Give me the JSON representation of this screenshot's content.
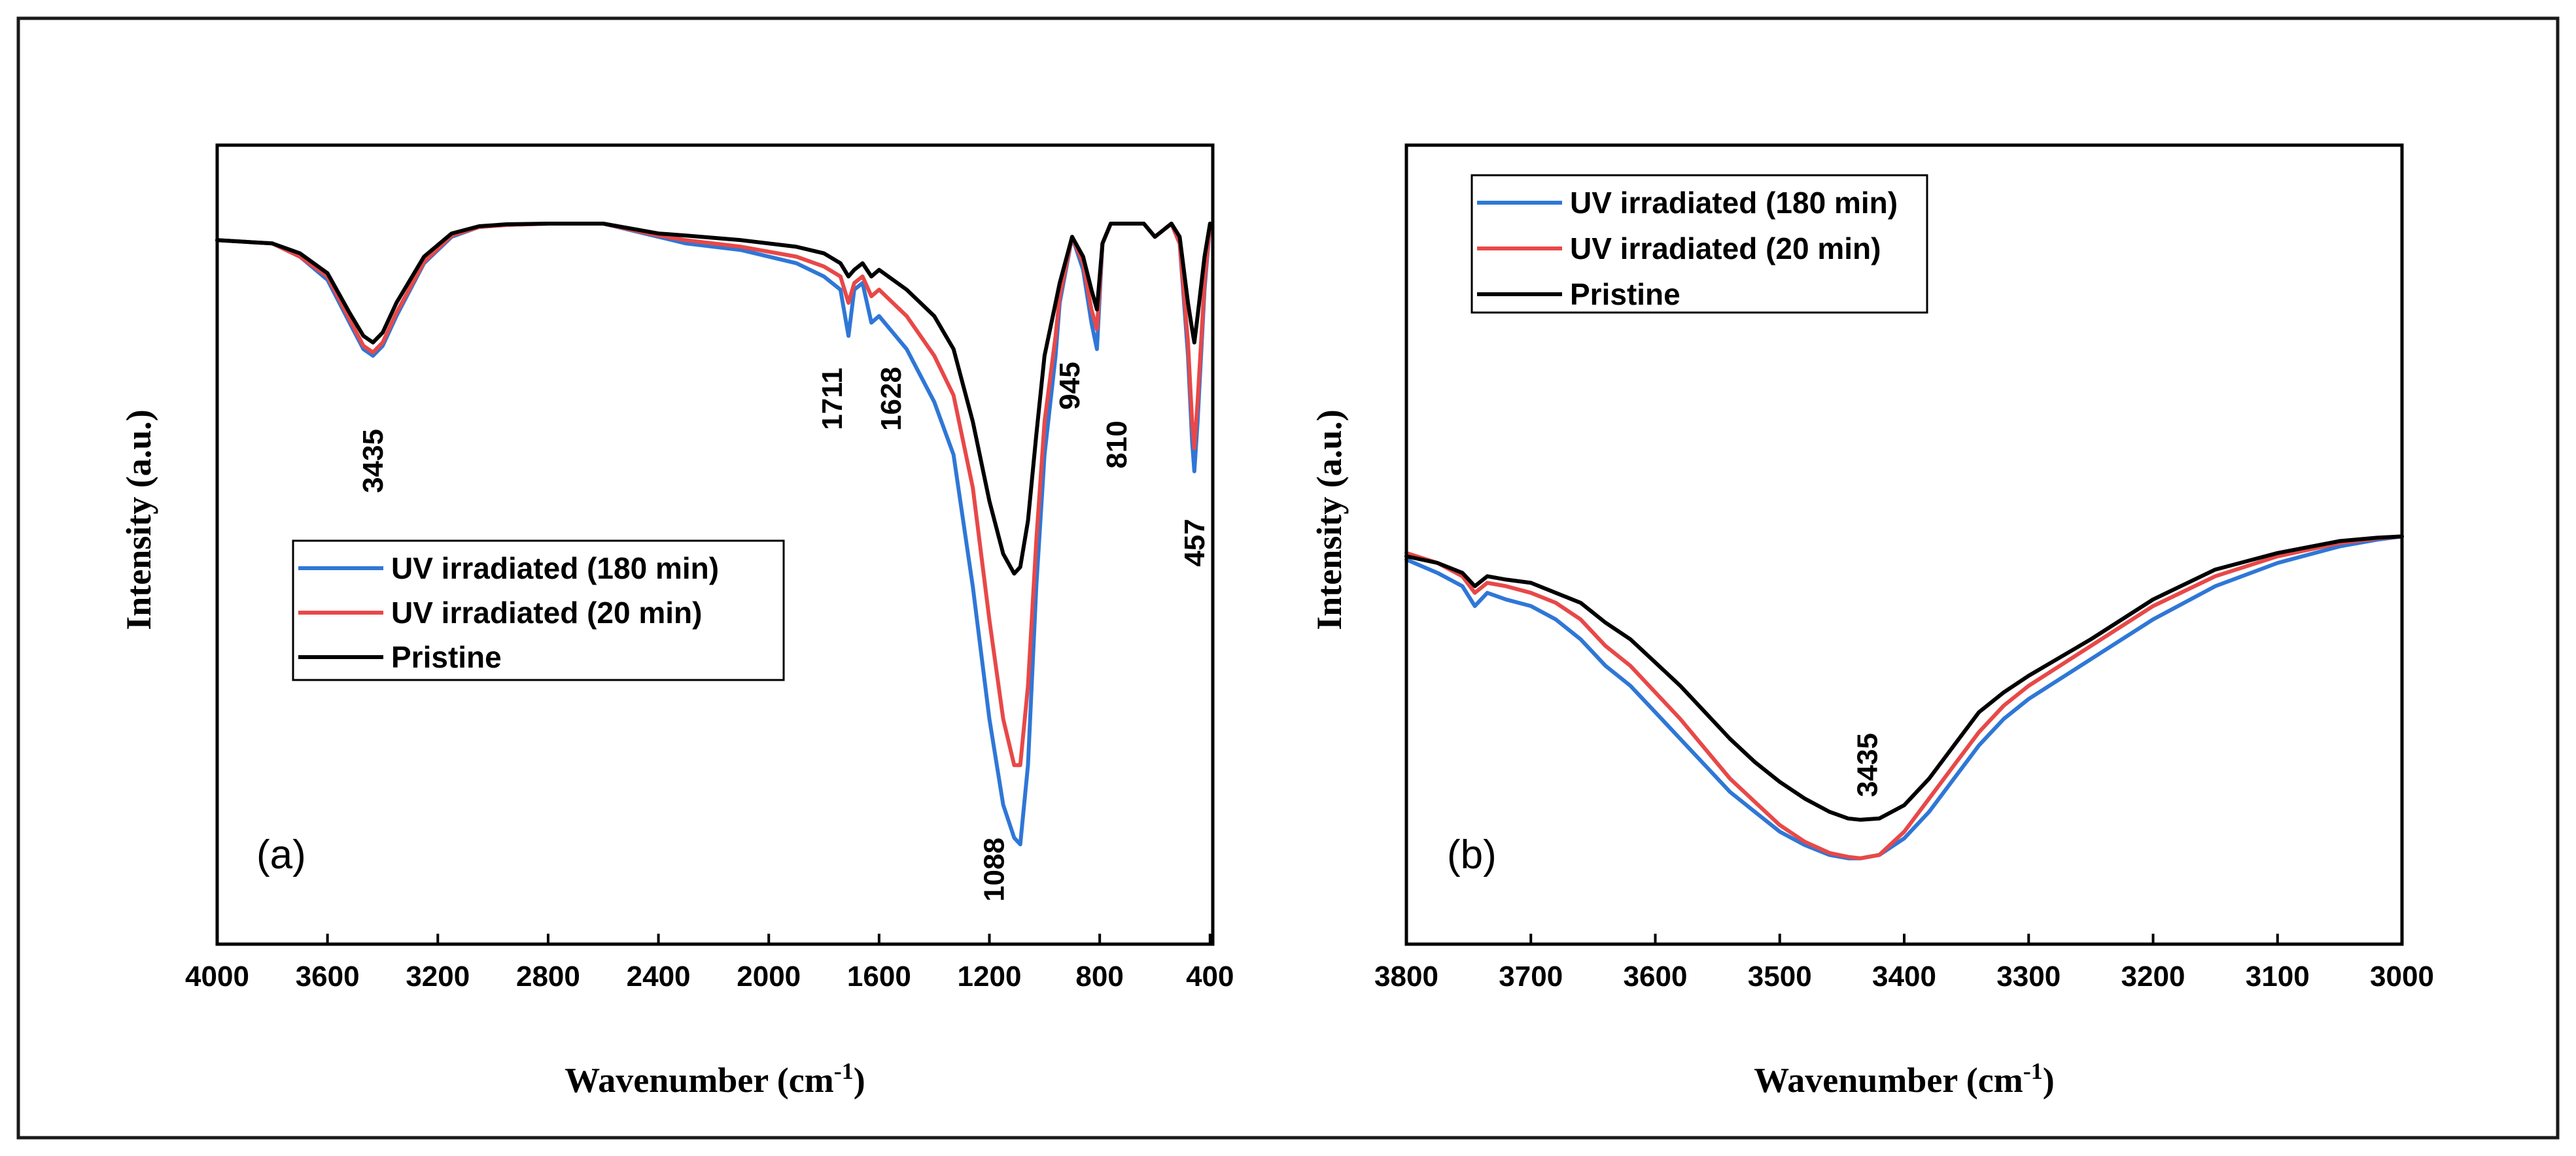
{
  "chart_data": [
    {
      "type": "line",
      "panel_label": "(a)",
      "xlabel": "Wavenumber (cm",
      "xlabel_sup": "-1",
      "xlabel_close": ")",
      "ylabel": "Intensity (a.u.)",
      "xlim": [
        4000,
        390
      ],
      "ylim": [
        0,
        1
      ],
      "xticks": [
        4000,
        3600,
        3200,
        2800,
        2400,
        2000,
        1600,
        1200,
        800,
        400
      ],
      "xtick_labels": [
        "4000",
        "3600",
        "3200",
        "2800",
        "2400",
        "2000",
        "1600",
        "1200",
        "800",
        "400"
      ],
      "legend": {
        "position": "center-left",
        "entries": [
          {
            "label": "UV irradiated (180 min)",
            "color": "#2f77d6"
          },
          {
            "label": "UV irradiated (20 min)",
            "color": "#e84848"
          },
          {
            "label": "Pristine",
            "color": "#000000"
          }
        ]
      },
      "annotations": [
        {
          "text": "3435",
          "x": 3435
        },
        {
          "text": "1711",
          "x": 1711
        },
        {
          "text": "1628",
          "x": 1628
        },
        {
          "text": "1088",
          "x": 1088
        },
        {
          "text": "945",
          "x": 945
        },
        {
          "text": "810",
          "x": 810
        },
        {
          "text": "457",
          "x": 457
        }
      ],
      "series": [
        {
          "name": "UV irradiated (180 min)",
          "color": "#2f77d6",
          "x": [
            4000,
            3800,
            3700,
            3600,
            3520,
            3470,
            3435,
            3400,
            3350,
            3250,
            3150,
            3050,
            2950,
            2800,
            2600,
            2400,
            2300,
            2100,
            1900,
            1800,
            1740,
            1711,
            1690,
            1660,
            1628,
            1600,
            1500,
            1400,
            1330,
            1260,
            1200,
            1150,
            1110,
            1088,
            1060,
            1030,
            1000,
            960,
            945,
            900,
            860,
            830,
            810,
            790,
            760,
            700,
            640,
            600,
            540,
            510,
            480,
            465,
            457,
            445,
            420,
            400
          ],
          "y": [
            0.025,
            0.03,
            0.05,
            0.085,
            0.15,
            0.19,
            0.2,
            0.185,
            0.14,
            0.06,
            0.02,
            0.005,
            0.002,
            0.0,
            0.0,
            0.02,
            0.03,
            0.04,
            0.06,
            0.08,
            0.1,
            0.17,
            0.1,
            0.09,
            0.15,
            0.14,
            0.19,
            0.27,
            0.35,
            0.55,
            0.75,
            0.88,
            0.93,
            0.94,
            0.82,
            0.55,
            0.35,
            0.2,
            0.12,
            0.02,
            0.07,
            0.15,
            0.19,
            0.03,
            0.0,
            0.0,
            0.0,
            0.02,
            0.0,
            0.03,
            0.2,
            0.33,
            0.375,
            0.3,
            0.1,
            0.0
          ]
        },
        {
          "name": "UV irradiated (20 min)",
          "color": "#e84848",
          "x": [
            4000,
            3800,
            3700,
            3600,
            3520,
            3470,
            3435,
            3400,
            3350,
            3250,
            3150,
            3050,
            2950,
            2800,
            2600,
            2400,
            2300,
            2100,
            1900,
            1800,
            1740,
            1711,
            1690,
            1660,
            1628,
            1600,
            1500,
            1400,
            1330,
            1260,
            1200,
            1150,
            1110,
            1088,
            1060,
            1030,
            1000,
            960,
            945,
            900,
            860,
            830,
            810,
            790,
            760,
            700,
            640,
            600,
            540,
            510,
            480,
            465,
            457,
            445,
            420,
            400
          ],
          "y": [
            0.025,
            0.03,
            0.05,
            0.08,
            0.145,
            0.185,
            0.195,
            0.18,
            0.135,
            0.058,
            0.018,
            0.005,
            0.002,
            0.0,
            0.0,
            0.018,
            0.025,
            0.035,
            0.05,
            0.065,
            0.08,
            0.12,
            0.09,
            0.08,
            0.11,
            0.1,
            0.14,
            0.2,
            0.26,
            0.4,
            0.6,
            0.75,
            0.82,
            0.82,
            0.7,
            0.48,
            0.3,
            0.17,
            0.11,
            0.02,
            0.06,
            0.13,
            0.16,
            0.03,
            0.0,
            0.0,
            0.0,
            0.02,
            0.0,
            0.03,
            0.18,
            0.3,
            0.34,
            0.27,
            0.09,
            0.0
          ]
        },
        {
          "name": "Pristine",
          "color": "#000000",
          "x": [
            4000,
            3800,
            3700,
            3600,
            3520,
            3470,
            3435,
            3400,
            3350,
            3250,
            3150,
            3050,
            2950,
            2800,
            2600,
            2400,
            2300,
            2100,
            1900,
            1800,
            1740,
            1711,
            1690,
            1660,
            1628,
            1600,
            1500,
            1400,
            1330,
            1260,
            1200,
            1150,
            1110,
            1088,
            1060,
            1030,
            1000,
            960,
            945,
            900,
            860,
            830,
            810,
            790,
            760,
            700,
            640,
            600,
            540,
            510,
            480,
            465,
            457,
            445,
            420,
            400
          ],
          "y": [
            0.025,
            0.03,
            0.045,
            0.075,
            0.135,
            0.17,
            0.18,
            0.165,
            0.12,
            0.05,
            0.015,
            0.004,
            0.001,
            0.0,
            0.0,
            0.015,
            0.018,
            0.025,
            0.035,
            0.045,
            0.06,
            0.08,
            0.07,
            0.06,
            0.08,
            0.07,
            0.1,
            0.14,
            0.19,
            0.3,
            0.42,
            0.5,
            0.53,
            0.52,
            0.45,
            0.32,
            0.2,
            0.12,
            0.09,
            0.02,
            0.05,
            0.1,
            0.13,
            0.03,
            0.0,
            0.0,
            0.0,
            0.02,
            0.0,
            0.02,
            0.12,
            0.16,
            0.18,
            0.14,
            0.05,
            0.0
          ]
        }
      ]
    },
    {
      "type": "line",
      "panel_label": "(b)",
      "xlabel": "Wavenumber (cm",
      "xlabel_sup": "-1",
      "xlabel_close": ")",
      "ylabel": "Intensity (a.u.)",
      "xlim": [
        3800,
        3000
      ],
      "ylim": [
        0,
        1
      ],
      "xticks": [
        3800,
        3700,
        3600,
        3500,
        3400,
        3300,
        3200,
        3100,
        3000
      ],
      "xtick_labels": [
        "3800",
        "3700",
        "3600",
        "3500",
        "3400",
        "3300",
        "3200",
        "3100",
        "3000"
      ],
      "legend": {
        "position": "top-left",
        "entries": [
          {
            "label": "UV irradiated (180 min)",
            "color": "#2f77d6"
          },
          {
            "label": "UV irradiated (20 min)",
            "color": "#e84848"
          },
          {
            "label": "Pristine",
            "color": "#000000"
          }
        ]
      },
      "annotations": [
        {
          "text": "3435",
          "x": 3435
        }
      ],
      "series": [
        {
          "name": "UV irradiated (180 min)",
          "color": "#2f77d6",
          "x": [
            3800,
            3775,
            3755,
            3745,
            3735,
            3720,
            3700,
            3680,
            3660,
            3640,
            3620,
            3600,
            3580,
            3560,
            3540,
            3520,
            3500,
            3480,
            3460,
            3445,
            3435,
            3420,
            3400,
            3380,
            3360,
            3340,
            3320,
            3300,
            3250,
            3200,
            3150,
            3100,
            3050,
            3020,
            3000
          ],
          "y": [
            0.74,
            0.72,
            0.7,
            0.67,
            0.69,
            0.68,
            0.67,
            0.65,
            0.62,
            0.58,
            0.55,
            0.51,
            0.47,
            0.43,
            0.39,
            0.36,
            0.33,
            0.31,
            0.295,
            0.29,
            0.29,
            0.295,
            0.32,
            0.36,
            0.41,
            0.46,
            0.5,
            0.53,
            0.59,
            0.65,
            0.7,
            0.735,
            0.76,
            0.77,
            0.775
          ]
        },
        {
          "name": "UV irradiated (20 min)",
          "color": "#e84848",
          "x": [
            3800,
            3775,
            3755,
            3745,
            3735,
            3720,
            3700,
            3680,
            3660,
            3640,
            3620,
            3600,
            3580,
            3560,
            3540,
            3520,
            3500,
            3480,
            3460,
            3445,
            3435,
            3420,
            3400,
            3380,
            3360,
            3340,
            3320,
            3300,
            3250,
            3200,
            3150,
            3100,
            3050,
            3020,
            3000
          ],
          "y": [
            0.75,
            0.735,
            0.715,
            0.69,
            0.705,
            0.7,
            0.69,
            0.675,
            0.65,
            0.61,
            0.58,
            0.54,
            0.5,
            0.455,
            0.41,
            0.375,
            0.34,
            0.315,
            0.298,
            0.292,
            0.29,
            0.295,
            0.33,
            0.38,
            0.43,
            0.48,
            0.52,
            0.55,
            0.61,
            0.67,
            0.715,
            0.745,
            0.765,
            0.772,
            0.775
          ]
        },
        {
          "name": "Pristine",
          "color": "#000000",
          "x": [
            3800,
            3775,
            3755,
            3745,
            3735,
            3720,
            3700,
            3680,
            3660,
            3640,
            3620,
            3600,
            3580,
            3560,
            3540,
            3520,
            3500,
            3480,
            3460,
            3445,
            3435,
            3420,
            3400,
            3380,
            3360,
            3340,
            3320,
            3300,
            3250,
            3200,
            3150,
            3100,
            3050,
            3020,
            3000
          ],
          "y": [
            0.745,
            0.735,
            0.72,
            0.7,
            0.715,
            0.71,
            0.705,
            0.69,
            0.675,
            0.645,
            0.62,
            0.585,
            0.55,
            0.51,
            0.47,
            0.435,
            0.405,
            0.38,
            0.36,
            0.35,
            0.348,
            0.35,
            0.37,
            0.41,
            0.46,
            0.51,
            0.54,
            0.565,
            0.62,
            0.68,
            0.725,
            0.75,
            0.768,
            0.773,
            0.775
          ]
        }
      ]
    }
  ]
}
